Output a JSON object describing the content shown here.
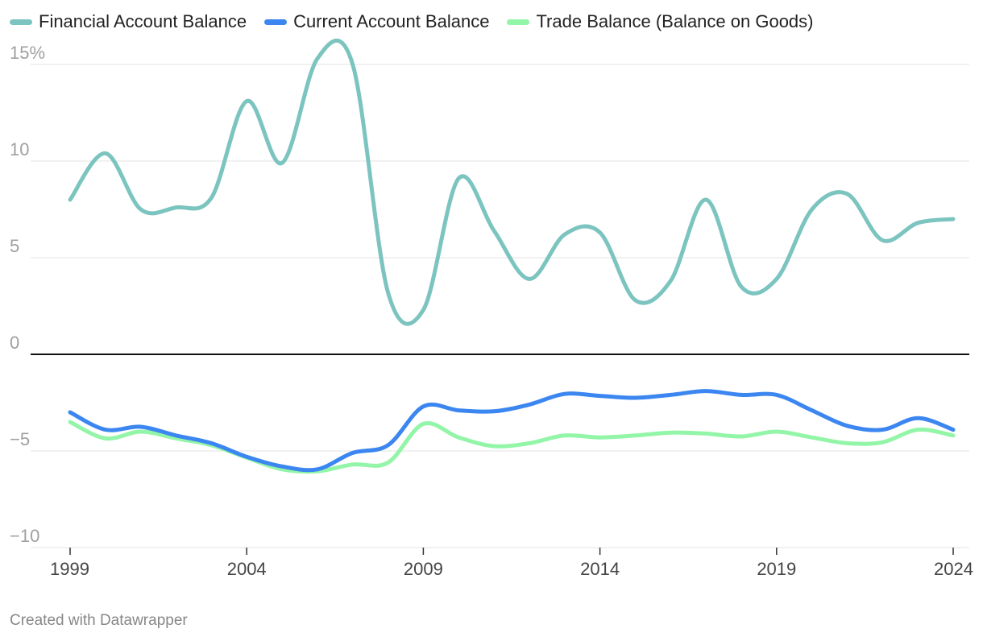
{
  "footer": "Created with Datawrapper",
  "chart_data": {
    "type": "line",
    "x": [
      1999,
      2000,
      2001,
      2002,
      2003,
      2004,
      2005,
      2006,
      2007,
      2008,
      2009,
      2010,
      2011,
      2012,
      2013,
      2014,
      2015,
      2016,
      2017,
      2018,
      2019,
      2020,
      2021,
      2022,
      2023,
      2024
    ],
    "series": [
      {
        "name": "Financial Account Balance",
        "color": "#7cc4bf",
        "values": [
          8.0,
          10.4,
          7.5,
          7.6,
          8.1,
          13.1,
          9.9,
          15.3,
          15.0,
          3.2,
          2.3,
          9.1,
          6.4,
          3.9,
          6.2,
          6.3,
          2.8,
          3.8,
          8.0,
          3.5,
          3.9,
          7.5,
          8.3,
          5.9,
          6.8,
          7.0
        ]
      },
      {
        "name": "Current Account Balance",
        "color": "#3b86f0",
        "values": [
          -3.0,
          -3.9,
          -3.75,
          -4.2,
          -4.6,
          -5.3,
          -5.8,
          -5.95,
          -5.1,
          -4.7,
          -2.7,
          -2.9,
          -2.95,
          -2.6,
          -2.05,
          -2.15,
          -2.25,
          -2.1,
          -1.9,
          -2.1,
          -2.1,
          -2.9,
          -3.7,
          -3.9,
          -3.3,
          -3.9
        ]
      },
      {
        "name": "Trade Balance (Balance on Goods)",
        "color": "#93f5a8",
        "values": [
          -3.5,
          -4.35,
          -4.0,
          -4.35,
          -4.7,
          -5.35,
          -5.95,
          -6.05,
          -5.7,
          -5.6,
          -3.6,
          -4.3,
          -4.75,
          -4.6,
          -4.2,
          -4.3,
          -4.2,
          -4.05,
          -4.1,
          -4.25,
          -4.0,
          -4.3,
          -4.6,
          -4.55,
          -3.9,
          -4.2
        ]
      }
    ],
    "y_ticks": [
      15,
      10,
      5,
      0,
      -5,
      -10
    ],
    "y_tick_labels": [
      "15%",
      "10",
      "5",
      "0",
      "−5",
      "−10"
    ],
    "x_ticks": [
      1999,
      2004,
      2009,
      2014,
      2019,
      2024
    ],
    "x_tick_labels": [
      "1999",
      "2004",
      "2009",
      "2014",
      "2019",
      "2024"
    ],
    "ylim": [
      -10,
      15
    ],
    "xlim": [
      1999,
      2024
    ],
    "grid": true,
    "legend_position": "top-left"
  }
}
